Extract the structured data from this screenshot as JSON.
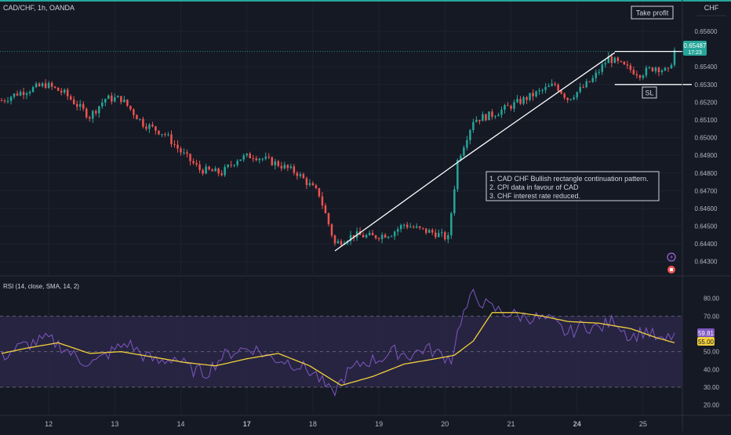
{
  "header": {
    "symbol": "CAD/CHF, 1h, OANDA",
    "currency": "CHF"
  },
  "price_panel": {
    "y_ticks": [
      "0.65600",
      "0.65400",
      "0.65300",
      "0.65200",
      "0.65100",
      "0.65000",
      "0.64900",
      "0.64800",
      "0.64700",
      "0.64600",
      "0.64500",
      "0.64400",
      "0.64300"
    ],
    "last_price": "0.65487",
    "countdown": "17:23"
  },
  "annotations": {
    "take_profit": "Take profit",
    "stop_loss": "SL",
    "notes": [
      "1. CAD CHF Bullish rectangle continuation pattern.",
      "2. CPI data in favour of CAD",
      "3. CHF interest rate reduced."
    ]
  },
  "rsi_panel": {
    "label": "RSI (14, close, SMA, 14, 2)",
    "y_ticks": [
      "80.00",
      "70.00",
      "50.00",
      "40.00",
      "30.00",
      "20.00"
    ],
    "rsi_value": "59.81",
    "sma_value": "55.00"
  },
  "x_axis": {
    "labels": [
      "12",
      "13",
      "14",
      "17",
      "18",
      "19",
      "20",
      "21",
      "24",
      "25"
    ]
  },
  "colors": {
    "up": "#26a69a",
    "down": "#ef5350",
    "rsi": "#7e57c2",
    "sma": "#f2d03b",
    "background": "#151924"
  },
  "chart_data": [
    {
      "type": "candlestick",
      "title": "CAD/CHF, 1h, OANDA",
      "ylim": [
        0.6425,
        0.6568
      ],
      "x": [
        "12",
        "13",
        "14",
        "17",
        "18",
        "19",
        "20",
        "21",
        "24",
        "25"
      ],
      "close_path": [
        [
          0,
          0.6521
        ],
        [
          5,
          0.6525
        ],
        [
          14,
          0.653
        ],
        [
          20,
          0.6525
        ],
        [
          28,
          0.6512
        ],
        [
          33,
          0.6522
        ],
        [
          38,
          0.6522
        ],
        [
          45,
          0.6508
        ],
        [
          52,
          0.6502
        ],
        [
          57,
          0.6492
        ],
        [
          63,
          0.6482
        ],
        [
          70,
          0.648
        ],
        [
          75,
          0.6488
        ],
        [
          80,
          0.649
        ],
        [
          88,
          0.6485
        ],
        [
          94,
          0.648
        ],
        [
          101,
          0.6468
        ],
        [
          106,
          0.644
        ],
        [
          112,
          0.6445
        ],
        [
          118,
          0.6444
        ],
        [
          124,
          0.6446
        ],
        [
          128,
          0.6451
        ],
        [
          133,
          0.6448
        ],
        [
          138,
          0.6446
        ],
        [
          142,
          0.6443
        ],
        [
          145,
          0.6487
        ],
        [
          150,
          0.651
        ],
        [
          156,
          0.6513
        ],
        [
          162,
          0.6518
        ],
        [
          170,
          0.6525
        ],
        [
          176,
          0.653
        ],
        [
          180,
          0.6522
        ],
        [
          184,
          0.6527
        ],
        [
          188,
          0.6533
        ],
        [
          193,
          0.6545
        ],
        [
          198,
          0.654
        ],
        [
          203,
          0.6536
        ],
        [
          208,
          0.654
        ],
        [
          212,
          0.6537
        ],
        [
          214,
          0.6549
        ]
      ],
      "levels": {
        "take_profit": 0.65487,
        "stop_loss": 0.653
      },
      "trendlines": [
        [
          [
            106,
            0.6436
          ],
          [
            145,
            0.6486
          ]
        ],
        [
          [
            145,
            0.6486
          ],
          [
            195,
            0.6548
          ]
        ]
      ]
    },
    {
      "type": "line",
      "title": "RSI (14, close, SMA, 14, 2)",
      "ylim": [
        15,
        90
      ],
      "levels": [
        70,
        50,
        30
      ],
      "series": [
        {
          "name": "RSI",
          "values": [
            [
              0,
              47
            ],
            [
              5,
              52
            ],
            [
              10,
              55
            ],
            [
              15,
              57
            ],
            [
              20,
              52
            ],
            [
              25,
              45
            ],
            [
              30,
              44
            ],
            [
              35,
              50
            ],
            [
              40,
              55
            ],
            [
              45,
              48
            ],
            [
              50,
              44
            ],
            [
              55,
              47
            ],
            [
              60,
              40
            ],
            [
              65,
              38
            ],
            [
              70,
              47
            ],
            [
              75,
              51
            ],
            [
              80,
              52
            ],
            [
              85,
              47
            ],
            [
              90,
              45
            ],
            [
              95,
              42
            ],
            [
              100,
              37
            ],
            [
              105,
              26
            ],
            [
              110,
              38
            ],
            [
              115,
              44
            ],
            [
              120,
              46
            ],
            [
              125,
              50
            ],
            [
              130,
              48
            ],
            [
              135,
              52
            ],
            [
              140,
              48
            ],
            [
              143,
              46
            ],
            [
              146,
              68
            ],
            [
              150,
              82
            ],
            [
              155,
              75
            ],
            [
              160,
              72
            ],
            [
              165,
              70
            ],
            [
              170,
              69
            ],
            [
              175,
              67
            ],
            [
              180,
              60
            ],
            [
              185,
              65
            ],
            [
              190,
              63
            ],
            [
              195,
              68
            ],
            [
              200,
              58
            ],
            [
              205,
              62
            ],
            [
              210,
              55
            ],
            [
              214,
              59.81
            ]
          ]
        },
        {
          "name": "SMA",
          "values": [
            [
              0,
              49
            ],
            [
              8,
              52
            ],
            [
              18,
              55
            ],
            [
              28,
              49
            ],
            [
              38,
              50
            ],
            [
              48,
              47
            ],
            [
              58,
              44
            ],
            [
              68,
              42
            ],
            [
              78,
              46
            ],
            [
              88,
              49
            ],
            [
              98,
              42
            ],
            [
              108,
              31
            ],
            [
              118,
              36
            ],
            [
              128,
              43
            ],
            [
              138,
              46
            ],
            [
              144,
              48
            ],
            [
              150,
              56
            ],
            [
              156,
              72
            ],
            [
              164,
              72
            ],
            [
              172,
              70
            ],
            [
              180,
              67
            ],
            [
              190,
              66
            ],
            [
              200,
              63
            ],
            [
              208,
              58
            ],
            [
              214,
              55
            ]
          ]
        }
      ]
    }
  ]
}
